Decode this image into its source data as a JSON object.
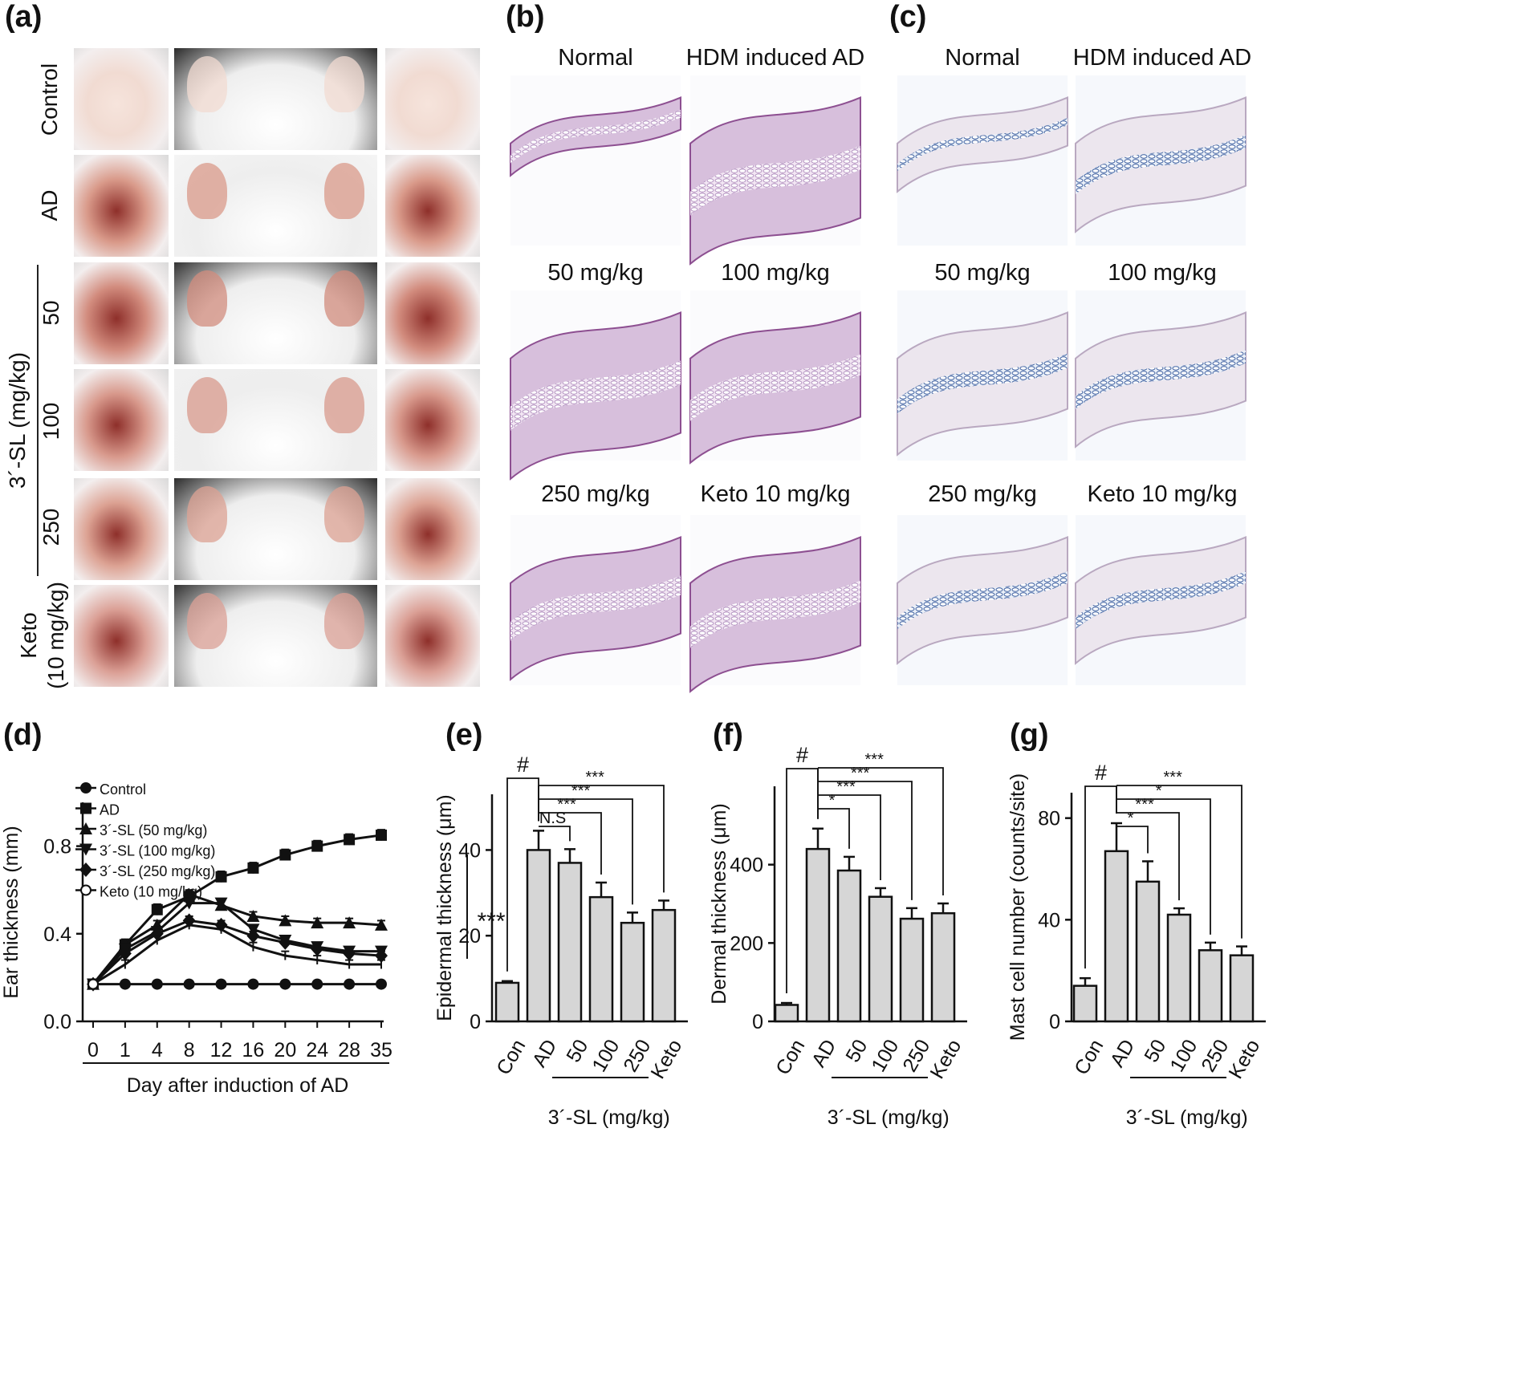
{
  "panels": {
    "a": "(a)",
    "b": "(b)",
    "c": "(c)",
    "d": "(d)",
    "e": "(e)",
    "f": "(f)",
    "g": "(g)"
  },
  "panel_a": {
    "rows": [
      "Control",
      "AD",
      "50",
      "100",
      "250",
      "Keto (10 mg/kg)"
    ],
    "keto_line1": "Keto",
    "keto_line2": "(10 mg/kg)",
    "group_label": "3´-SL (mg/kg)"
  },
  "panel_b": {
    "captions": [
      "Normal",
      "HDM induced AD",
      "50 mg/kg",
      "100 mg/kg",
      "250 mg/kg",
      "Keto 10 mg/kg"
    ]
  },
  "panel_c": {
    "captions": [
      "Normal",
      "HDM induced AD",
      "50 mg/kg",
      "100 mg/kg",
      "250 mg/kg",
      "Keto 10 mg/kg"
    ]
  },
  "colors": {
    "ear_pink": "#e6b6a8",
    "fur": "#efefef",
    "he_stain": "#b58cc0",
    "tb_stain": "#5a78b4",
    "bar_fill": "#d6d6d6"
  },
  "chart_data": [
    {
      "type": "line",
      "panel": "d",
      "ylabel": "Ear thickness (mm)",
      "xlabel": "Day after induction of AD",
      "x": [
        0,
        1,
        4,
        8,
        12,
        16,
        20,
        24,
        28,
        35
      ],
      "ylim": [
        0.0,
        1.0
      ],
      "yticks": [
        0.0,
        0.4,
        0.8
      ],
      "series": [
        {
          "name": "Control",
          "marker": "circle",
          "values": [
            0.17,
            0.17,
            0.17,
            0.17,
            0.17,
            0.17,
            0.17,
            0.17,
            0.17,
            0.17
          ]
        },
        {
          "name": "AD",
          "marker": "square",
          "values": [
            0.17,
            0.35,
            0.51,
            0.57,
            0.66,
            0.7,
            0.76,
            0.8,
            0.83,
            0.85
          ]
        },
        {
          "name": "3´-SL (50 mg/kg)",
          "marker": "triangle-up",
          "values": [
            0.17,
            0.35,
            0.44,
            0.58,
            0.53,
            0.48,
            0.46,
            0.45,
            0.45,
            0.44
          ]
        },
        {
          "name": "3´-SL (100 mg/kg)",
          "marker": "triangle-down",
          "values": [
            0.17,
            0.33,
            0.41,
            0.54,
            0.54,
            0.42,
            0.37,
            0.34,
            0.32,
            0.32
          ]
        },
        {
          "name": "3´-SL (250 mg/kg)",
          "marker": "diamond",
          "values": [
            0.17,
            0.31,
            0.4,
            0.46,
            0.44,
            0.39,
            0.36,
            0.33,
            0.31,
            0.3
          ]
        },
        {
          "name": "Keto (10 mg/kg)",
          "marker": "open-circle",
          "values": [
            0.17,
            0.26,
            0.37,
            0.44,
            0.42,
            0.34,
            0.3,
            0.28,
            0.26,
            0.26
          ]
        }
      ],
      "significance": "***"
    },
    {
      "type": "bar",
      "panel": "e",
      "ylabel": "Epidermal thickness (μm)",
      "categories": [
        "Con",
        "AD",
        "50",
        "100",
        "250",
        "Keto"
      ],
      "values": [
        9,
        40,
        37,
        29,
        23,
        26
      ],
      "errors": [
        0.4,
        4.5,
        3.2,
        3.4,
        2.4,
        2.2
      ],
      "ylim": [
        0,
        53
      ],
      "yticks": [
        0,
        20,
        40
      ],
      "group_label": "3´-SL (mg/kg)",
      "marks": [
        "#",
        "N.S",
        "***",
        "***",
        "***"
      ]
    },
    {
      "type": "bar",
      "panel": "f",
      "ylabel": "Dermal thickness (μm)",
      "categories": [
        "Con",
        "AD",
        "50",
        "100",
        "250",
        "Keto"
      ],
      "values": [
        42,
        440,
        385,
        318,
        262,
        276
      ],
      "errors": [
        5,
        52,
        35,
        22,
        27,
        25
      ],
      "ylim": [
        0,
        600
      ],
      "yticks": [
        0,
        200,
        400
      ],
      "group_label": "3´-SL (mg/kg)",
      "marks": [
        "#",
        "*",
        "***",
        "***",
        "***"
      ]
    },
    {
      "type": "bar",
      "panel": "g",
      "ylabel": "Mast cell number (counts/site)",
      "categories": [
        "Con",
        "AD",
        "50",
        "100",
        "250",
        "Keto"
      ],
      "values": [
        14,
        67,
        55,
        42,
        28,
        26
      ],
      "errors": [
        3,
        11,
        8,
        2.5,
        3,
        3.5
      ],
      "ylim": [
        0,
        90
      ],
      "yticks": [
        0,
        40,
        80
      ],
      "group_label": "3´-SL (mg/kg)",
      "marks": [
        "#",
        "*",
        "***",
        "*",
        "***"
      ]
    }
  ]
}
